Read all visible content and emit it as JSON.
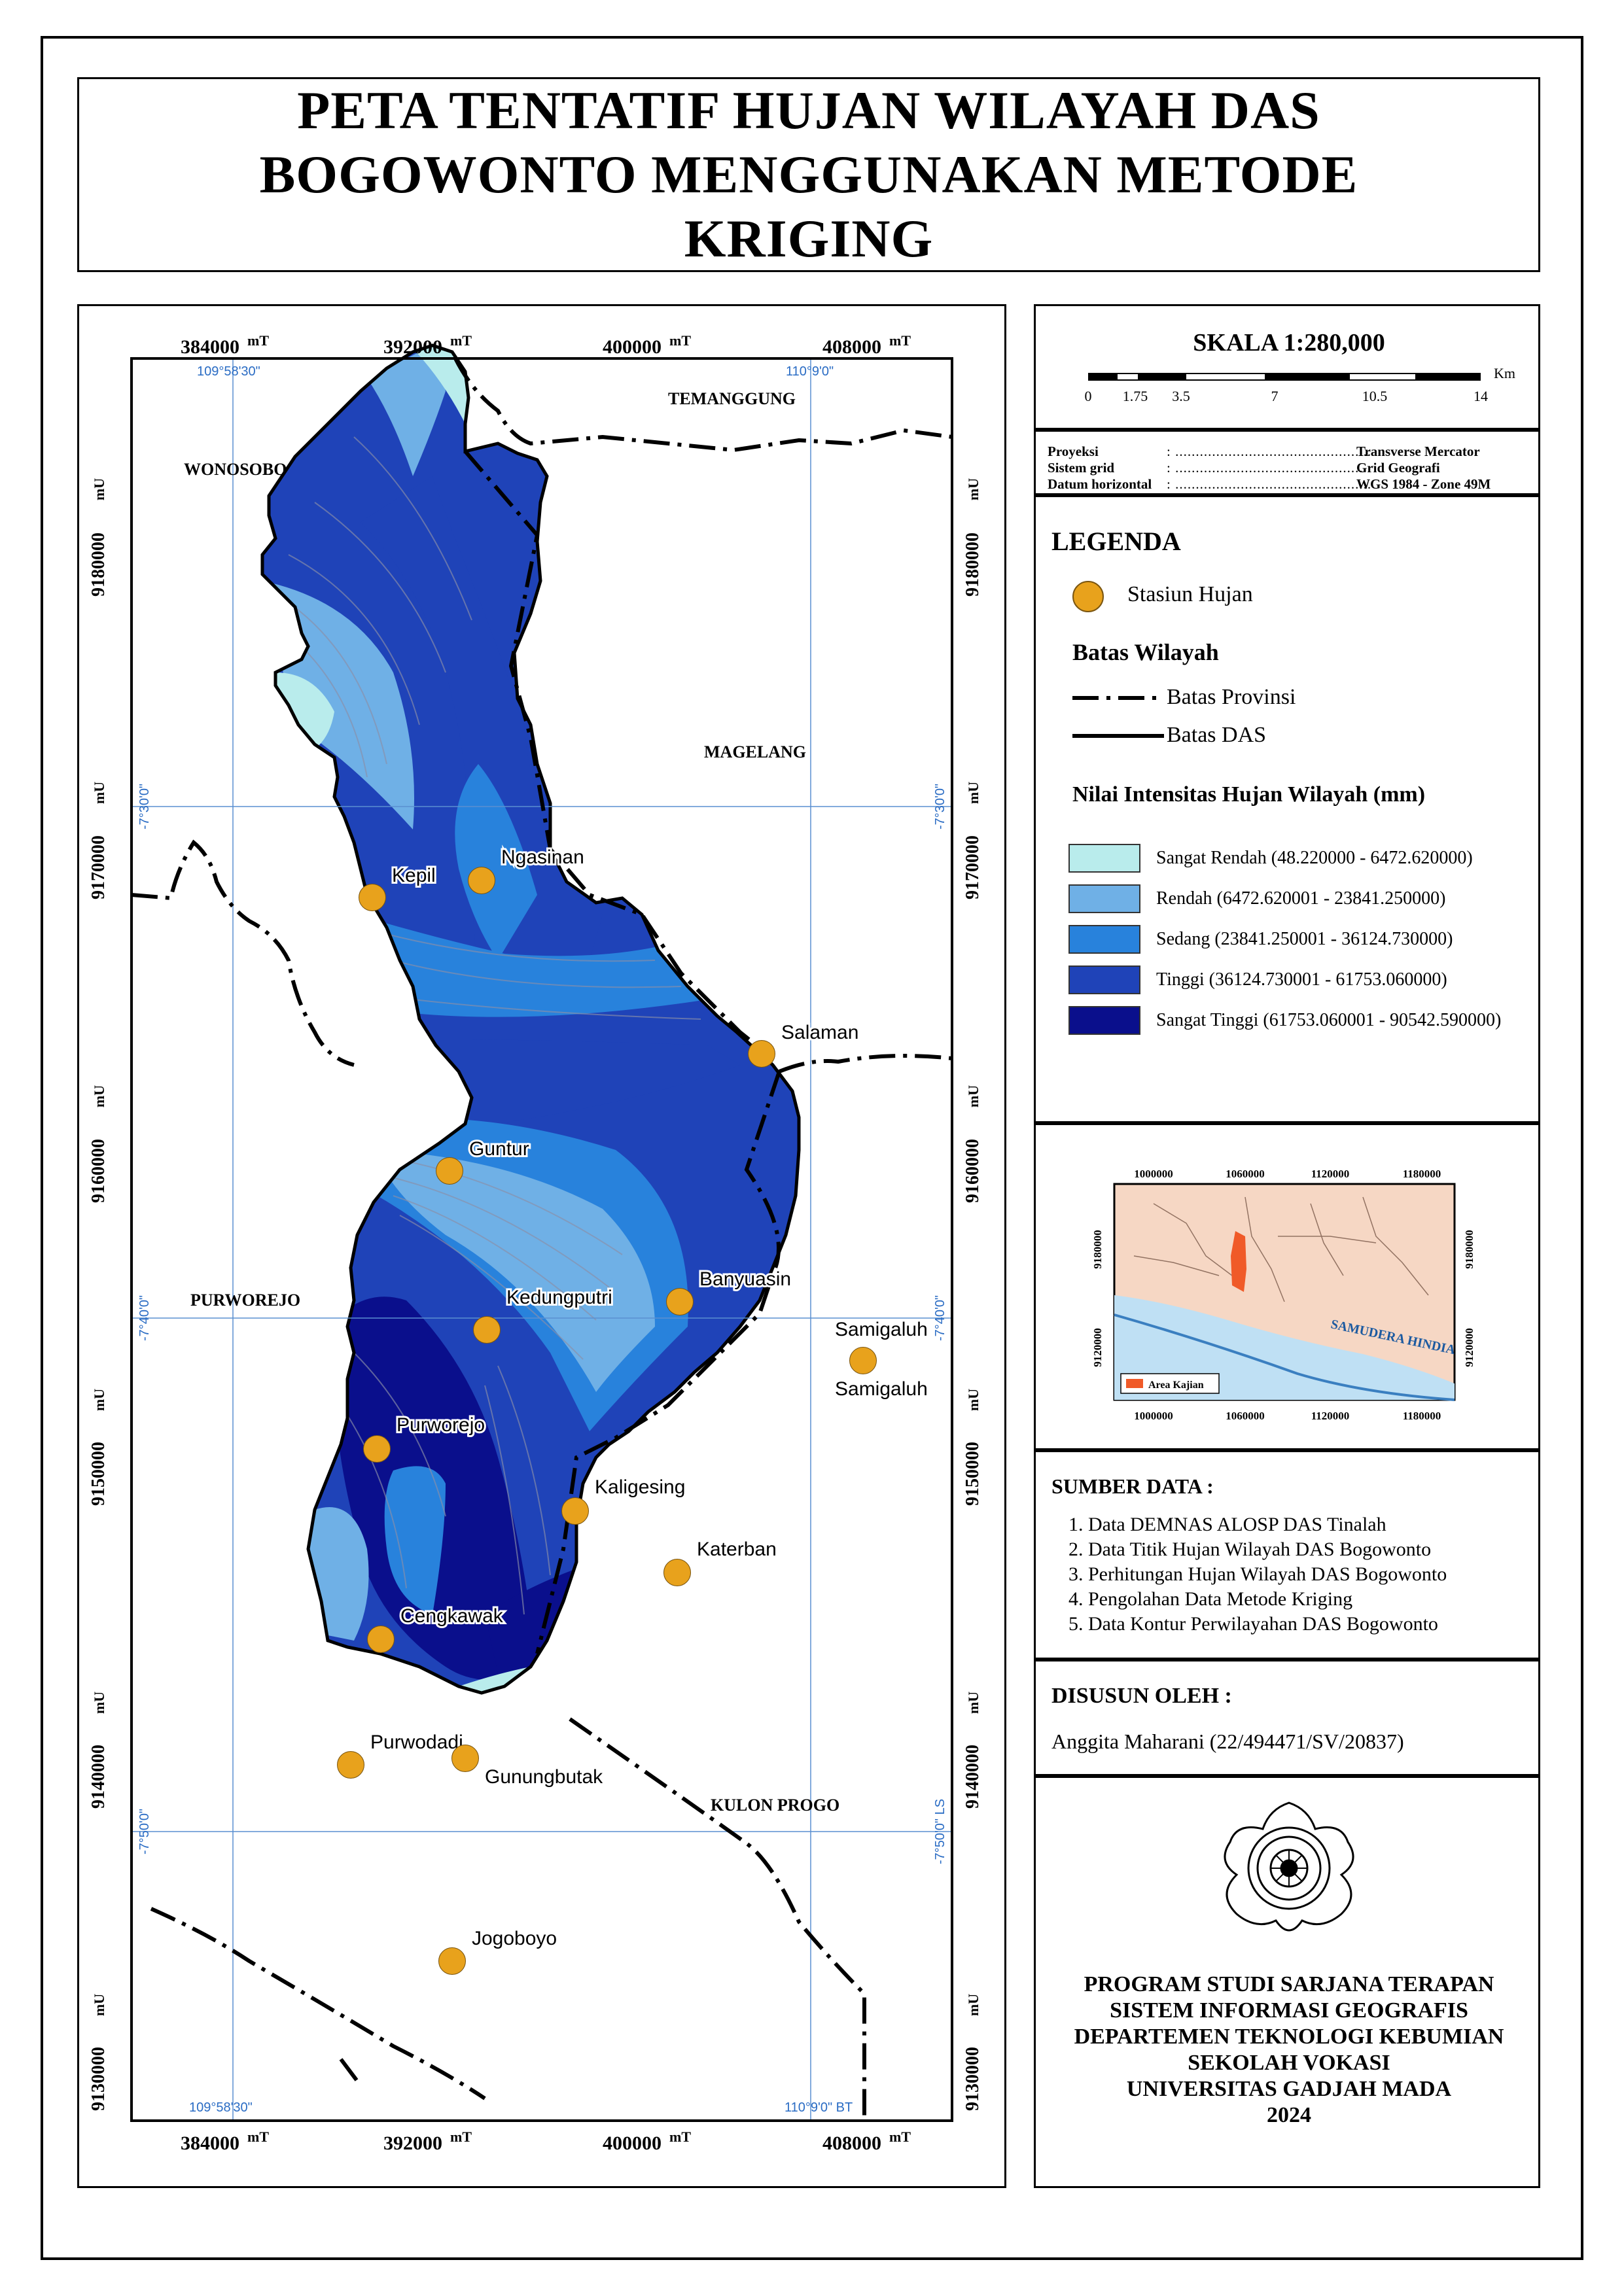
{
  "title": {
    "lines": [
      "PETA TENTATIF HUJAN WILAYAH DAS",
      "BOGOWONTO MENGGUNAKAN METODE",
      "KRIGING"
    ]
  },
  "map": {
    "grid_x_labels": [
      "384000",
      "392000",
      "400000",
      "408000"
    ],
    "grid_x_unit": "mT",
    "grid_y_labels": [
      "9180000",
      "9170000",
      "9160000",
      "9150000",
      "9140000",
      "9130000"
    ],
    "grid_y_unit": "mU",
    "geo_top": [
      "109°58'30\"",
      "110°9'0\""
    ],
    "geo_bottom": [
      "109°58'30\"",
      "110°9'0\" BT"
    ],
    "geo_left": [
      "-7°30'0\"",
      "-7°40'0\"",
      "-7°50'0\""
    ],
    "geo_right": [
      "-7°30'0\"",
      "-7°40'0\"",
      "-7°50'0\" LS"
    ],
    "regions": [
      "WONOSOBO",
      "TEMANGGUNG",
      "MAGELANG",
      "PURWOREJO",
      "KULON PROGO"
    ],
    "stations": [
      "Kepil",
      "Ngasinan",
      "Salaman",
      "Guntur",
      "Banyuasin",
      "Kedungputri",
      "Samigaluh",
      "Samigaluh",
      "Purworejo",
      "Kaligesing",
      "Katerban",
      "Cengkawak",
      "Purwodadi",
      "Gunungbutak",
      "Jogoboyo"
    ],
    "station_color": "#e8a21c"
  },
  "scale": {
    "title": "SKALA 1:280,000",
    "ticks": [
      "0",
      "1.75",
      "3.5",
      "7",
      "10.5",
      "14"
    ],
    "unit": "Km"
  },
  "projection": {
    "rows": [
      {
        "label": "Proyeksi",
        "value": "Transverse Mercator"
      },
      {
        "label": "Sistem grid",
        "value": "Grid Geografi"
      },
      {
        "label": "Datum horizontal",
        "value": "WGS 1984 - Zone 49M"
      }
    ]
  },
  "legend": {
    "title": "LEGENDA",
    "station_label": "Stasiun Hujan",
    "boundary_title": "Batas Wilayah",
    "boundary_province": "Batas Provinsi",
    "boundary_das": "Batas DAS",
    "intensity_title": "Nilai Intensitas Hujan Wilayah (mm)",
    "classes": [
      {
        "label": "Sangat Rendah (48.220000 - 6472.620000)",
        "color": "#b9ecec"
      },
      {
        "label": "Rendah (6472.620001 - 23841.250000)",
        "color": "#6fb0e6"
      },
      {
        "label": "Sedang (23841.250001 - 36124.730000)",
        "color": "#2882dc"
      },
      {
        "label": "Tinggi (36124.730001 - 61753.060000)",
        "color": "#1f43b8"
      },
      {
        "label": "Sangat Tinggi (61753.060001 - 90542.590000)",
        "color": "#0a0f8c"
      }
    ]
  },
  "inset": {
    "x_labels": [
      "1000000",
      "1060000",
      "1120000",
      "1180000"
    ],
    "x_unit": "mT",
    "y_labels": [
      "9180000",
      "9120000"
    ],
    "y_unit": "mU",
    "sea_label": "SAMUDERA HINDIA",
    "area_label": "Area Kajian"
  },
  "sources": {
    "title": "SUMBER DATA :",
    "items": [
      "1. Data DEMNAS ALOSP DAS Tinalah",
      "2. Data Titik Hujan Wilayah DAS Bogowonto",
      "3. Perhitungan Hujan Wilayah DAS Bogowonto",
      "4. Pengolahan Data Metode Kriging",
      "5. Data Kontur Perwilayahan DAS Bogowonto"
    ]
  },
  "author": {
    "title": "DISUSUN OLEH :",
    "name": "Anggita Maharani (22/494471/SV/20837)"
  },
  "footer": {
    "lines": [
      "PROGRAM STUDI SARJANA TERAPAN",
      "SISTEM INFORMASI GEOGRAFIS",
      "DEPARTEMEN TEKNOLOGI KEBUMIAN",
      "SEKOLAH VOKASI",
      "UNIVERSITAS GADJAH MADA",
      "2024"
    ]
  }
}
